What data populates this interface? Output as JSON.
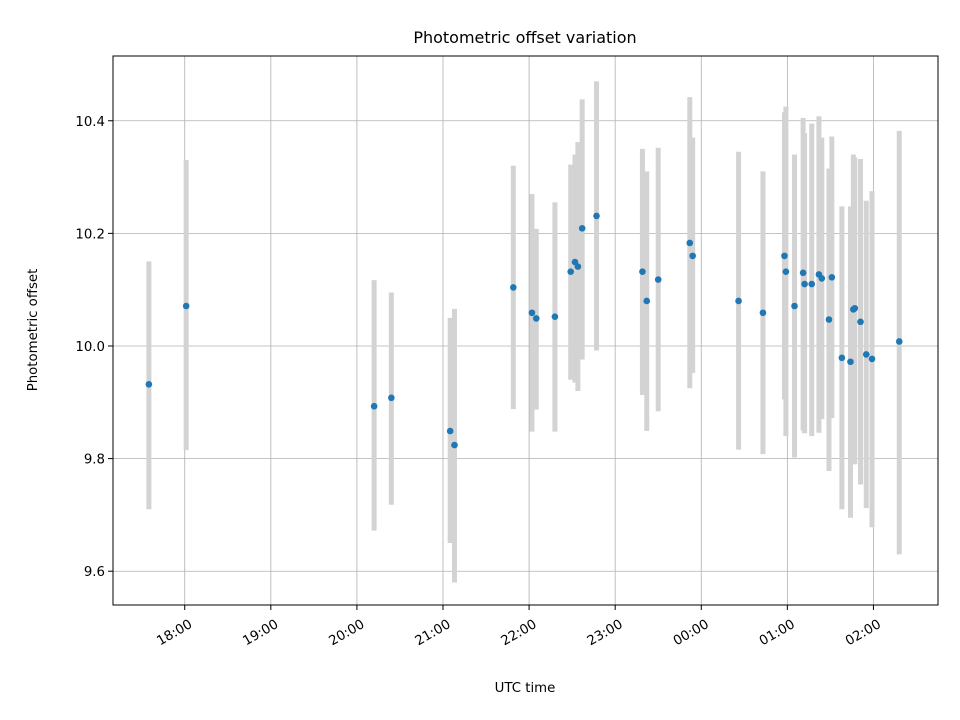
{
  "chart_data": {
    "type": "scatter",
    "title": "Photometric offset variation",
    "xlabel": "UTC time",
    "ylabel": "Photometric offset",
    "x_axis_type": "time",
    "x_range": [
      "17:10",
      "02:45"
    ],
    "ylim": [
      9.54,
      10.515
    ],
    "y_ticks": [
      9.6,
      9.8,
      10.0,
      10.2,
      10.4
    ],
    "x_ticks": [
      "18:00",
      "19:00",
      "20:00",
      "21:00",
      "22:00",
      "23:00",
      "00:00",
      "01:00",
      "02:00"
    ],
    "grid": true,
    "point_color": "#1f77b4",
    "errorbar_color": "#d3d3d3",
    "points": [
      {
        "t": "17:35",
        "y": 9.932,
        "lo": 9.71,
        "hi": 10.15
      },
      {
        "t": "18:01",
        "y": 10.071,
        "lo": 9.815,
        "hi": 10.33
      },
      {
        "t": "20:12",
        "y": 9.893,
        "lo": 9.672,
        "hi": 10.117
      },
      {
        "t": "20:24",
        "y": 9.908,
        "lo": 9.718,
        "hi": 10.095
      },
      {
        "t": "21:05",
        "y": 9.849,
        "lo": 9.65,
        "hi": 10.05
      },
      {
        "t": "21:08",
        "y": 9.824,
        "lo": 9.58,
        "hi": 10.066
      },
      {
        "t": "21:49",
        "y": 10.104,
        "lo": 9.888,
        "hi": 10.32
      },
      {
        "t": "22:02",
        "y": 10.059,
        "lo": 9.848,
        "hi": 10.27
      },
      {
        "t": "22:05",
        "y": 10.049,
        "lo": 9.887,
        "hi": 10.208
      },
      {
        "t": "22:18",
        "y": 10.052,
        "lo": 9.848,
        "hi": 10.255
      },
      {
        "t": "22:29",
        "y": 10.132,
        "lo": 9.94,
        "hi": 10.322
      },
      {
        "t": "22:32",
        "y": 10.149,
        "lo": 9.935,
        "hi": 10.34
      },
      {
        "t": "22:34",
        "y": 10.141,
        "lo": 9.92,
        "hi": 10.362
      },
      {
        "t": "22:37",
        "y": 10.209,
        "lo": 9.976,
        "hi": 10.438
      },
      {
        "t": "22:47",
        "y": 10.231,
        "lo": 9.992,
        "hi": 10.47
      },
      {
        "t": "23:19",
        "y": 10.132,
        "lo": 9.913,
        "hi": 10.35
      },
      {
        "t": "23:22",
        "y": 10.08,
        "lo": 9.849,
        "hi": 10.31
      },
      {
        "t": "23:30",
        "y": 10.118,
        "lo": 9.884,
        "hi": 10.352
      },
      {
        "t": "23:52",
        "y": 10.183,
        "lo": 9.925,
        "hi": 10.442
      },
      {
        "t": "23:54",
        "y": 10.16,
        "lo": 9.952,
        "hi": 10.37
      },
      {
        "t": "00:26",
        "y": 10.08,
        "lo": 9.816,
        "hi": 10.345
      },
      {
        "t": "00:43",
        "y": 10.059,
        "lo": 9.808,
        "hi": 10.31
      },
      {
        "t": "00:58",
        "y": 10.16,
        "lo": 9.905,
        "hi": 10.415
      },
      {
        "t": "00:59",
        "y": 10.132,
        "lo": 9.84,
        "hi": 10.425
      },
      {
        "t": "01:05",
        "y": 10.071,
        "lo": 9.802,
        "hi": 10.34
      },
      {
        "t": "01:11",
        "y": 10.13,
        "lo": 9.85,
        "hi": 10.405
      },
      {
        "t": "01:12",
        "y": 10.11,
        "lo": 9.845,
        "hi": 10.378
      },
      {
        "t": "01:17",
        "y": 10.11,
        "lo": 9.84,
        "hi": 10.395
      },
      {
        "t": "01:22",
        "y": 10.127,
        "lo": 9.846,
        "hi": 10.408
      },
      {
        "t": "01:24",
        "y": 10.12,
        "lo": 9.87,
        "hi": 10.37
      },
      {
        "t": "01:29",
        "y": 10.047,
        "lo": 9.778,
        "hi": 10.315
      },
      {
        "t": "01:31",
        "y": 10.122,
        "lo": 9.872,
        "hi": 10.372
      },
      {
        "t": "01:38",
        "y": 9.979,
        "lo": 9.71,
        "hi": 10.248
      },
      {
        "t": "01:44",
        "y": 9.972,
        "lo": 9.695,
        "hi": 10.248
      },
      {
        "t": "01:46",
        "y": 10.065,
        "lo": 9.79,
        "hi": 10.34
      },
      {
        "t": "01:47",
        "y": 10.067,
        "lo": 9.79,
        "hi": 10.335
      },
      {
        "t": "01:51",
        "y": 10.043,
        "lo": 9.754,
        "hi": 10.332
      },
      {
        "t": "01:55",
        "y": 9.985,
        "lo": 9.712,
        "hi": 10.258
      },
      {
        "t": "01:59",
        "y": 9.977,
        "lo": 9.678,
        "hi": 10.275
      },
      {
        "t": "02:18",
        "y": 10.008,
        "lo": 9.63,
        "hi": 10.382
      }
    ]
  }
}
